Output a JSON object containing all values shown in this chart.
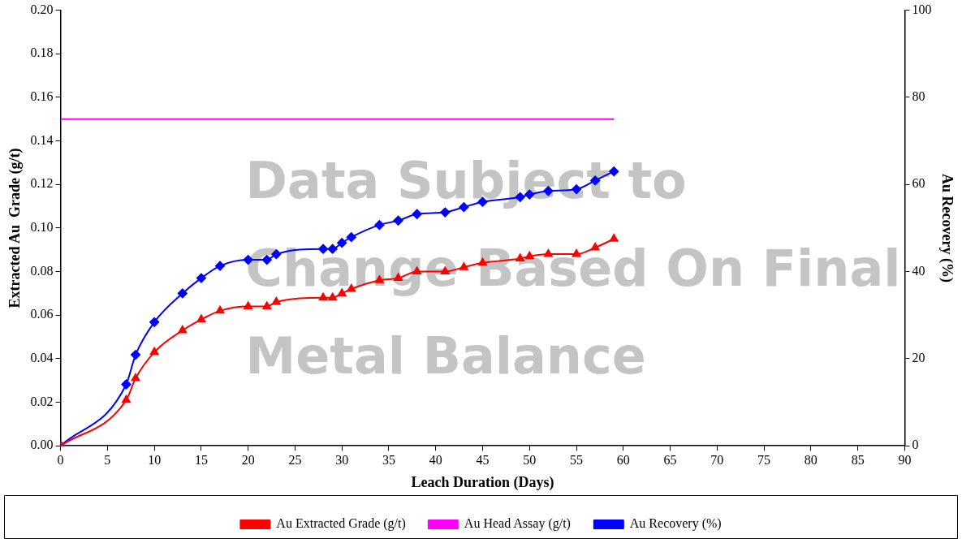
{
  "chart_data": {
    "type": "line",
    "xlabel": "Leach Duration (Days)",
    "ylabel": "Extracted Au  Grade (g/t)",
    "y2label": "Au Recovery (%)",
    "xlim": [
      0,
      90
    ],
    "xticks": [
      0,
      5,
      10,
      15,
      20,
      25,
      30,
      35,
      40,
      45,
      50,
      55,
      60,
      65,
      70,
      75,
      80,
      85,
      90
    ],
    "ylim": [
      0,
      0.2
    ],
    "yticks": [
      {
        "value": 0,
        "label": "0.00"
      },
      {
        "value": 0.02,
        "label": "0.02"
      },
      {
        "value": 0.04,
        "label": "0.04"
      },
      {
        "value": 0.06,
        "label": "0.06"
      },
      {
        "value": 0.08,
        "label": "0.08"
      },
      {
        "value": 0.1,
        "label": "0.10"
      },
      {
        "value": 0.12,
        "label": "0.12"
      },
      {
        "value": 0.14,
        "label": "0.14"
      },
      {
        "value": 0.16,
        "label": "0.16"
      },
      {
        "value": 0.18,
        "label": "0.18"
      },
      {
        "value": 0.2,
        "label": "0.20"
      }
    ],
    "y2lim": [
      0,
      100
    ],
    "y2ticks": [
      0,
      20,
      40,
      60,
      80,
      100
    ],
    "grid": false,
    "legend": "bottom",
    "annotations": [
      "Data Subject to Change Based On Final Metal Balance"
    ],
    "x": [
      0,
      7,
      8,
      10,
      13,
      15,
      17,
      20,
      22,
      23,
      28,
      29,
      30,
      31,
      34,
      36,
      38,
      41,
      43,
      45,
      49,
      50,
      52,
      55,
      57,
      59
    ],
    "series": [
      {
        "name": "Au Extracted Grade (g/t)",
        "color": "#ff0000",
        "marker": "triangle",
        "values": [
          0,
          0.021,
          0.031,
          0.043,
          0.053,
          0.058,
          0.062,
          0.064,
          0.064,
          0.066,
          0.068,
          0.068,
          0.07,
          0.072,
          0.076,
          0.077,
          0.08,
          0.08,
          0.082,
          0.084,
          0.086,
          0.087,
          0.088,
          0.088,
          0.091,
          0.095
        ]
      },
      {
        "name": "Au Head Assay (g/t)",
        "color": "#ff00ff",
        "marker": "none",
        "x": [
          0,
          59
        ],
        "values": [
          0.15,
          0.15
        ]
      },
      {
        "name": "Au Recovery (%)",
        "color": "#0000ff",
        "marker": "diamond",
        "axis": "y2",
        "values": [
          0,
          14.1,
          20.9,
          28.4,
          35.0,
          38.5,
          41.3,
          42.7,
          42.7,
          44.0,
          45.2,
          45.2,
          46.6,
          47.9,
          50.7,
          51.7,
          53.2,
          53.6,
          54.8,
          56.0,
          57.1,
          57.7,
          58.5,
          58.9,
          60.9,
          63.0
        ]
      }
    ]
  }
}
